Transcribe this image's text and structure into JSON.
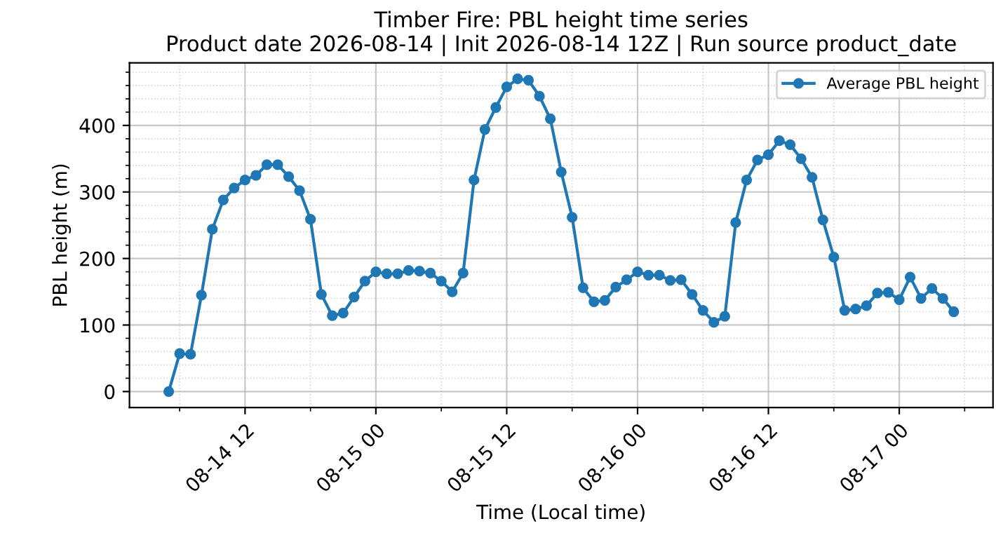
{
  "chart_data": {
    "type": "line",
    "title": "Timber Fire: PBL height time series\nProduct date 2026-08-14 | Init 2026-08-14 12Z | Run source product_date",
    "xlabel": "Time (Local time)",
    "ylabel": "PBL height (m)",
    "x": [
      "2026-08-14T05:00",
      "2026-08-14T06:00",
      "2026-08-14T07:00",
      "2026-08-14T08:00",
      "2026-08-14T09:00",
      "2026-08-14T10:00",
      "2026-08-14T11:00",
      "2026-08-14T12:00",
      "2026-08-14T13:00",
      "2026-08-14T14:00",
      "2026-08-14T15:00",
      "2026-08-14T16:00",
      "2026-08-14T17:00",
      "2026-08-14T18:00",
      "2026-08-14T19:00",
      "2026-08-14T20:00",
      "2026-08-14T21:00",
      "2026-08-14T22:00",
      "2026-08-14T23:00",
      "2026-08-15T00:00",
      "2026-08-15T01:00",
      "2026-08-15T02:00",
      "2026-08-15T03:00",
      "2026-08-15T04:00",
      "2026-08-15T05:00",
      "2026-08-15T06:00",
      "2026-08-15T07:00",
      "2026-08-15T08:00",
      "2026-08-15T09:00",
      "2026-08-15T10:00",
      "2026-08-15T11:00",
      "2026-08-15T12:00",
      "2026-08-15T13:00",
      "2026-08-15T14:00",
      "2026-08-15T15:00",
      "2026-08-15T16:00",
      "2026-08-15T17:00",
      "2026-08-15T18:00",
      "2026-08-15T19:00",
      "2026-08-15T20:00",
      "2026-08-15T21:00",
      "2026-08-15T22:00",
      "2026-08-15T23:00",
      "2026-08-16T00:00",
      "2026-08-16T01:00",
      "2026-08-16T02:00",
      "2026-08-16T03:00",
      "2026-08-16T04:00",
      "2026-08-16T05:00",
      "2026-08-16T06:00",
      "2026-08-16T07:00",
      "2026-08-16T08:00",
      "2026-08-16T09:00",
      "2026-08-16T10:00",
      "2026-08-16T11:00",
      "2026-08-16T12:00",
      "2026-08-16T13:00",
      "2026-08-16T14:00",
      "2026-08-16T15:00",
      "2026-08-16T16:00",
      "2026-08-16T17:00",
      "2026-08-16T18:00",
      "2026-08-16T19:00",
      "2026-08-16T20:00",
      "2026-08-16T21:00",
      "2026-08-16T22:00",
      "2026-08-16T23:00",
      "2026-08-17T00:00",
      "2026-08-17T01:00",
      "2026-08-17T02:00",
      "2026-08-17T03:00",
      "2026-08-17T04:00",
      "2026-08-17T05:00"
    ],
    "series": [
      {
        "name": "Average PBL height",
        "color": "#1f77b4",
        "values": [
          0,
          57,
          56,
          145,
          244,
          288,
          306,
          318,
          325,
          341,
          341,
          323,
          302,
          259,
          146,
          114,
          118,
          142,
          166,
          180,
          177,
          177,
          182,
          181,
          178,
          166,
          150,
          178,
          318,
          394,
          427,
          458,
          470,
          468,
          444,
          410,
          330,
          262,
          156,
          135,
          137,
          157,
          168,
          180,
          175,
          175,
          167,
          168,
          146,
          122,
          104,
          113,
          254,
          318,
          348,
          356,
          377,
          371,
          350,
          322,
          258,
          202,
          122,
          124,
          129,
          148,
          149,
          138,
          172,
          140,
          155,
          140,
          120
        ]
      }
    ],
    "xlim": [
      "2026-08-14T01:24",
      "2026-08-17T08:36"
    ],
    "xticks": [
      {
        "value": "2026-08-14T06:00",
        "label": null
      },
      {
        "value": "2026-08-14T12:00",
        "label": "08-14 12"
      },
      {
        "value": "2026-08-14T18:00",
        "label": null
      },
      {
        "value": "2026-08-15T00:00",
        "label": "08-15 00"
      },
      {
        "value": "2026-08-15T06:00",
        "label": null
      },
      {
        "value": "2026-08-15T12:00",
        "label": "08-15 12"
      },
      {
        "value": "2026-08-15T18:00",
        "label": null
      },
      {
        "value": "2026-08-16T00:00",
        "label": "08-16 00"
      },
      {
        "value": "2026-08-16T06:00",
        "label": null
      },
      {
        "value": "2026-08-16T12:00",
        "label": "08-16 12"
      },
      {
        "value": "2026-08-16T18:00",
        "label": null
      },
      {
        "value": "2026-08-17T00:00",
        "label": "08-17 00"
      },
      {
        "value": "2026-08-17T06:00",
        "label": null
      }
    ],
    "ylim": [
      -24,
      494
    ],
    "yticks": [
      0,
      {
        "value": 20,
        "label": null
      },
      {
        "value": 40,
        "label": null
      },
      {
        "value": 60,
        "label": null
      },
      {
        "value": 80,
        "label": null
      },
      100,
      {
        "value": 120,
        "label": null
      },
      {
        "value": 140,
        "label": null
      },
      {
        "value": 160,
        "label": null
      },
      {
        "value": 180,
        "label": null
      },
      200,
      {
        "value": 220,
        "label": null
      },
      {
        "value": 240,
        "label": null
      },
      {
        "value": 260,
        "label": null
      },
      {
        "value": 280,
        "label": null
      },
      300,
      {
        "value": 320,
        "label": null
      },
      {
        "value": 340,
        "label": null
      },
      {
        "value": 360,
        "label": null
      },
      {
        "value": 380,
        "label": null
      },
      400,
      {
        "value": 420,
        "label": null
      },
      {
        "value": 440,
        "label": null
      },
      {
        "value": 460,
        "label": null
      },
      {
        "value": 480,
        "label": null
      }
    ],
    "grid": true,
    "legend": "top right",
    "marker": "circle",
    "line_style": "solid"
  }
}
